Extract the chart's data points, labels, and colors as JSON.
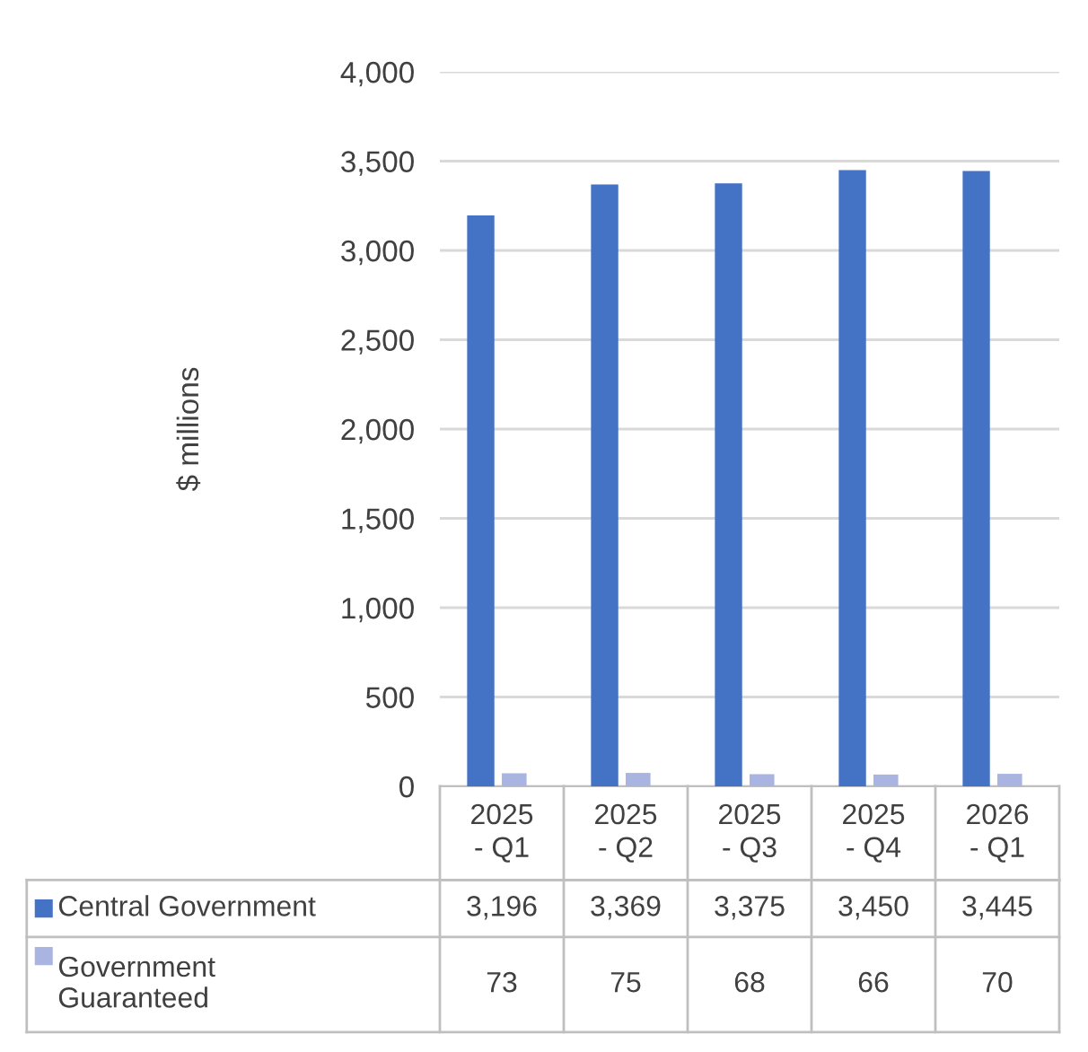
{
  "chart_data": {
    "type": "bar",
    "ylabel": "$ millions",
    "categories": [
      "2025\n- Q1",
      "2025\n- Q2",
      "2025\n- Q3",
      "2025\n- Q4",
      "2026\n- Q1"
    ],
    "series": [
      {
        "name": "Central Government",
        "color": "#4472c4",
        "values": [
          3196,
          3369,
          3375,
          3450,
          3445
        ],
        "value_labels": [
          "3,196",
          "3,369",
          "3,375",
          "3,450",
          "3,445"
        ]
      },
      {
        "name": "Government\nGuaranteed",
        "color": "#a9b5e0",
        "values": [
          73,
          75,
          68,
          66,
          70
        ],
        "value_labels": [
          "73",
          "75",
          "68",
          "66",
          "70"
        ]
      }
    ],
    "ylim": [
      0,
      4000
    ],
    "yticks": [
      {
        "value": 0,
        "label": "0"
      },
      {
        "value": 500,
        "label": "500"
      },
      {
        "value": 1000,
        "label": "1,000"
      },
      {
        "value": 1500,
        "label": "1,500"
      },
      {
        "value": 2000,
        "label": "2,000"
      },
      {
        "value": 2500,
        "label": "2,500"
      },
      {
        "value": 3000,
        "label": "3,000"
      },
      {
        "value": 3500,
        "label": "3,500"
      },
      {
        "value": 4000,
        "label": "4,000"
      }
    ],
    "grid": "y",
    "legend": "bottom"
  }
}
